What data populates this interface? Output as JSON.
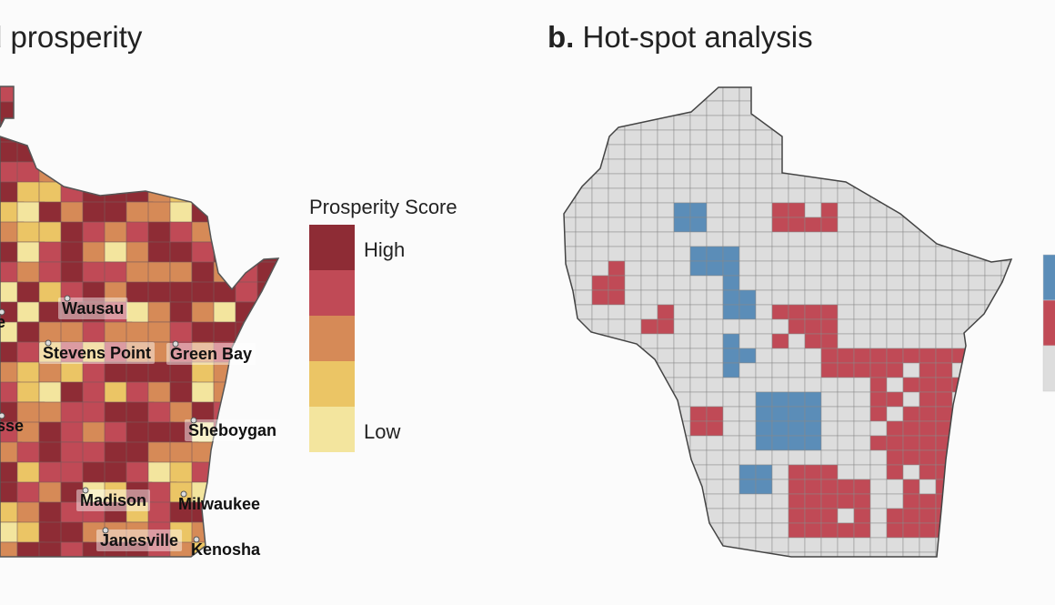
{
  "panel_a": {
    "title": "d prosperity",
    "legend": {
      "title": "Prosperity Score",
      "high_label": "High",
      "low_label": "Low",
      "colors": [
        "#8e2c35",
        "#c04a56",
        "#d68a57",
        "#ebc565",
        "#f3e59e"
      ]
    },
    "cities": [
      {
        "name": "Wausau"
      },
      {
        "name": "Stevens Point"
      },
      {
        "name": "Green Bay"
      },
      {
        "name": "Sheboygan"
      },
      {
        "name": "Madison"
      },
      {
        "name": "Milwaukee"
      },
      {
        "name": "Janesville"
      },
      {
        "name": "Kenosha"
      },
      {
        "name": "e"
      },
      {
        "name": "sse"
      }
    ]
  },
  "panel_b": {
    "title_letter": "b.",
    "title_text": "Hot-spot analysis",
    "legend_colors": [
      "#5b8db8",
      "#c04a56",
      "#dddddd"
    ]
  }
}
